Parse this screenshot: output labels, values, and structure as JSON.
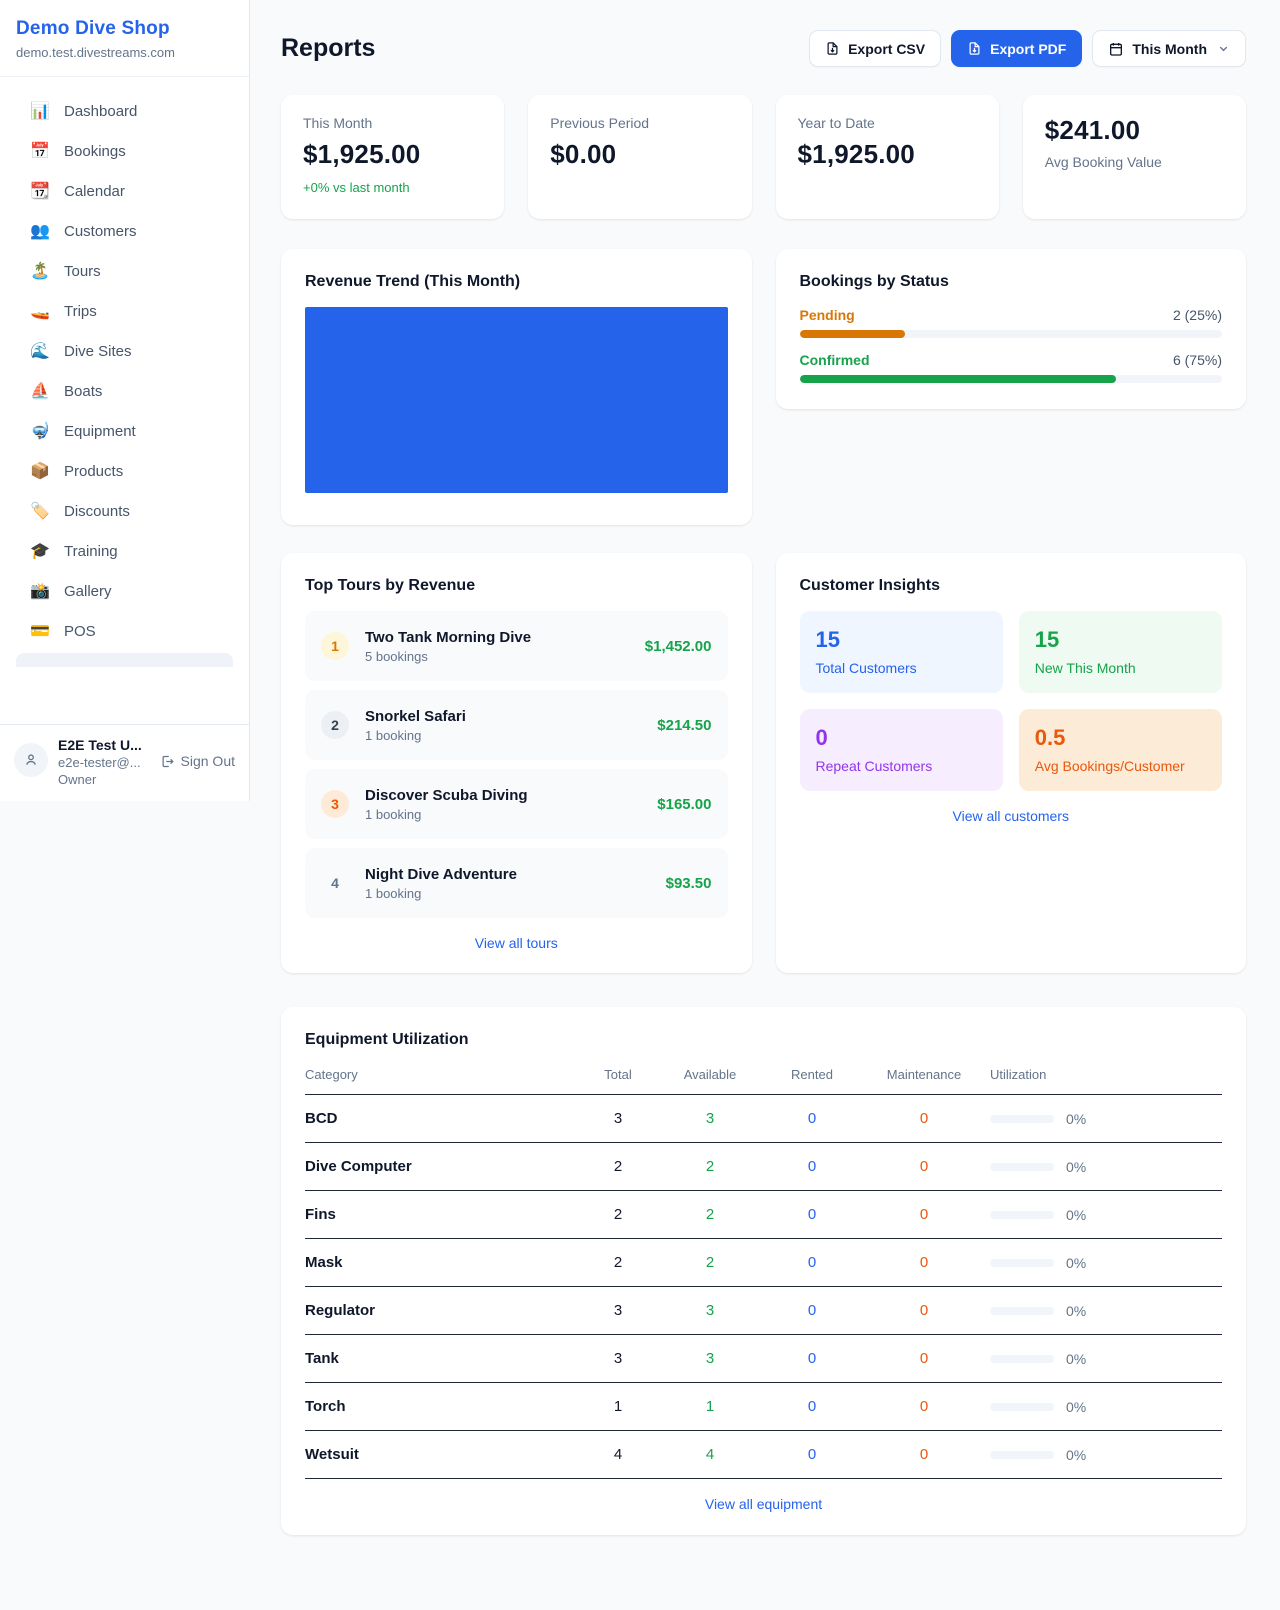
{
  "colors": {
    "brand_blue": "#2563eb",
    "green": "#16a34a",
    "pending_orange": "#d97706",
    "maintenance_orange": "#ea580c",
    "purple": "#9333ea",
    "page_bg": "#f8fafc"
  },
  "sidebar": {
    "shop_name": "Demo Dive Shop",
    "domain": "demo.test.divestreams.com",
    "items": [
      {
        "icon": "📊",
        "label": "Dashboard"
      },
      {
        "icon": "📅",
        "label": "Bookings"
      },
      {
        "icon": "📆",
        "label": "Calendar"
      },
      {
        "icon": "👥",
        "label": "Customers"
      },
      {
        "icon": "🏝️",
        "label": "Tours"
      },
      {
        "icon": "🚤",
        "label": "Trips"
      },
      {
        "icon": "🌊",
        "label": "Dive Sites"
      },
      {
        "icon": "⛵",
        "label": "Boats"
      },
      {
        "icon": "🤿",
        "label": "Equipment"
      },
      {
        "icon": "📦",
        "label": "Products"
      },
      {
        "icon": "🏷️",
        "label": "Discounts"
      },
      {
        "icon": "🎓",
        "label": "Training"
      },
      {
        "icon": "📸",
        "label": "Gallery"
      },
      {
        "icon": "💳",
        "label": "POS"
      }
    ],
    "user": {
      "name": "E2E Test U...",
      "email": "e2e-tester@...",
      "role": "Owner",
      "sign_out_label": "Sign Out"
    }
  },
  "header": {
    "title": "Reports",
    "export_csv_label": "Export CSV",
    "export_pdf_label": "Export PDF",
    "period_label": "This Month"
  },
  "stats": [
    {
      "label": "This Month",
      "value": "$1,925.00",
      "note": "+0% vs last month"
    },
    {
      "label": "Previous Period",
      "value": "$0.00"
    },
    {
      "label": "Year to Date",
      "value": "$1,925.00"
    },
    {
      "label": "Avg Booking Value",
      "value": "$241.00"
    }
  ],
  "revenue_trend": {
    "title": "Revenue Trend (This Month)"
  },
  "bookings_by_status": {
    "title": "Bookings by Status",
    "rows": [
      {
        "label": "Pending",
        "count_label": "2 (25%)",
        "pct": 25,
        "color": "#d97706"
      },
      {
        "label": "Confirmed",
        "count_label": "6 (75%)",
        "pct": 75,
        "color": "#16a34a"
      }
    ]
  },
  "top_tours": {
    "title": "Top Tours by Revenue",
    "items": [
      {
        "rank": "1",
        "name": "Two Tank Morning Dive",
        "bookings": "5 bookings",
        "revenue": "$1,452.00"
      },
      {
        "rank": "2",
        "name": "Snorkel Safari",
        "bookings": "1 booking",
        "revenue": "$214.50"
      },
      {
        "rank": "3",
        "name": "Discover Scuba Diving",
        "bookings": "1 booking",
        "revenue": "$165.00"
      },
      {
        "rank": "4",
        "name": "Night Dive Adventure",
        "bookings": "1 booking",
        "revenue": "$93.50"
      }
    ],
    "view_all_label": "View all tours"
  },
  "customer_insights": {
    "title": "Customer Insights",
    "tiles": [
      {
        "value": "15",
        "label": "Total Customers"
      },
      {
        "value": "15",
        "label": "New This Month"
      },
      {
        "value": "0",
        "label": "Repeat Customers"
      },
      {
        "value": "0.5",
        "label": "Avg Bookings/Customer"
      }
    ],
    "view_all_label": "View all customers"
  },
  "equipment": {
    "title": "Equipment Utilization",
    "columns": [
      "Category",
      "Total",
      "Available",
      "Rented",
      "Maintenance",
      "Utilization"
    ],
    "rows": [
      {
        "category": "BCD",
        "total": "3",
        "available": "3",
        "rented": "0",
        "maintenance": "0",
        "utilization": "0%",
        "utilization_pct": 0
      },
      {
        "category": "Dive Computer",
        "total": "2",
        "available": "2",
        "rented": "0",
        "maintenance": "0",
        "utilization": "0%",
        "utilization_pct": 0
      },
      {
        "category": "Fins",
        "total": "2",
        "available": "2",
        "rented": "0",
        "maintenance": "0",
        "utilization": "0%",
        "utilization_pct": 0
      },
      {
        "category": "Mask",
        "total": "2",
        "available": "2",
        "rented": "0",
        "maintenance": "0",
        "utilization": "0%",
        "utilization_pct": 0
      },
      {
        "category": "Regulator",
        "total": "3",
        "available": "3",
        "rented": "0",
        "maintenance": "0",
        "utilization": "0%",
        "utilization_pct": 0
      },
      {
        "category": "Tank",
        "total": "3",
        "available": "3",
        "rented": "0",
        "maintenance": "0",
        "utilization": "0%",
        "utilization_pct": 0
      },
      {
        "category": "Torch",
        "total": "1",
        "available": "1",
        "rented": "0",
        "maintenance": "0",
        "utilization": "0%",
        "utilization_pct": 0
      },
      {
        "category": "Wetsuit",
        "total": "4",
        "available": "4",
        "rented": "0",
        "maintenance": "0",
        "utilization": "0%",
        "utilization_pct": 0
      }
    ],
    "view_all_label": "View all equipment"
  },
  "chart_data": [
    {
      "type": "area",
      "title": "Revenue Trend (This Month)",
      "note": "chart renders as a fully filled solid blue block; no axes, ticks or labels visible",
      "fill_color": "#2563eb"
    },
    {
      "type": "bar",
      "title": "Bookings by Status",
      "categories": [
        "Pending",
        "Confirmed"
      ],
      "values": [
        2,
        6
      ],
      "percent": [
        25,
        75
      ],
      "value_labels": [
        "2 (25%)",
        "6 (75%)"
      ],
      "colors": [
        "#d97706",
        "#16a34a"
      ],
      "orientation": "horizontal"
    }
  ]
}
